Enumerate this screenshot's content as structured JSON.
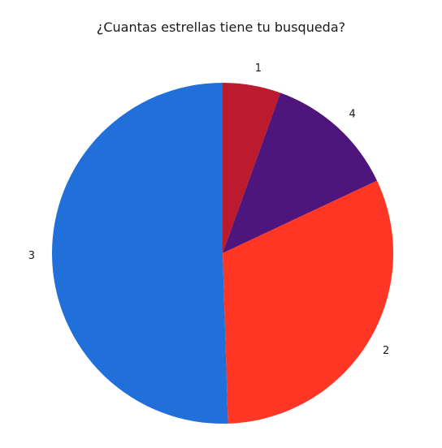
{
  "chart_data": {
    "type": "pie",
    "title": "¿Cuantas estrellas tiene tu busqueda?",
    "start_angle_deg": 90,
    "direction": "clockwise",
    "slices": [
      {
        "label": "1",
        "value": 5.5,
        "color": "#bb1b2c"
      },
      {
        "label": "4",
        "value": 12.5,
        "color": "#4e157d"
      },
      {
        "label": "2",
        "value": 31.5,
        "color": "#ff3624"
      },
      {
        "label": "3",
        "value": 50.5,
        "color": "#216fd9"
      }
    ]
  }
}
